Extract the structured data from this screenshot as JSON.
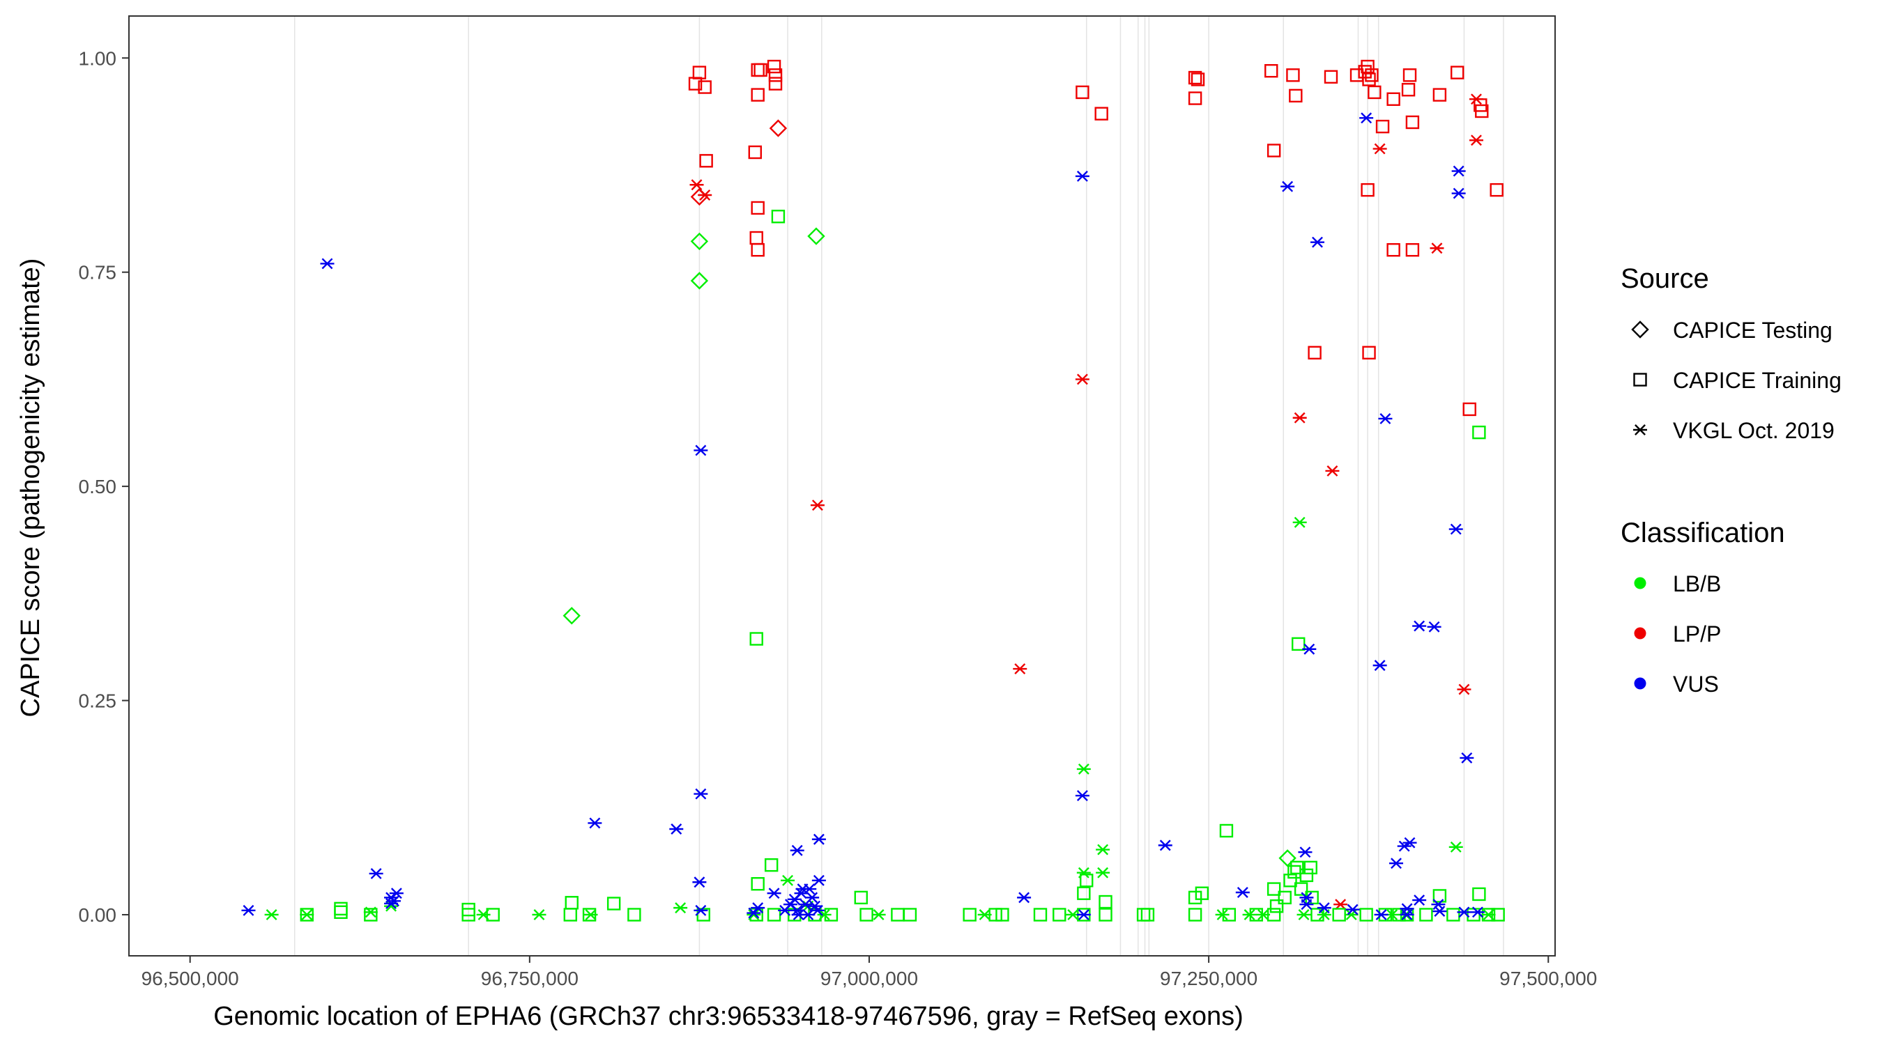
{
  "chart_data": {
    "type": "scatter",
    "xlabel": "Genomic location of EPHA6 (GRCh37 chr3:96533418-97467596, gray = RefSeq exons)",
    "ylabel": "CAPICE score (pathogenicity estimate)",
    "xlim": [
      96455000,
      97505000
    ],
    "ylim": [
      -0.048,
      1.049
    ],
    "x_ticks": [
      96500000,
      96750000,
      97000000,
      97250000,
      97500000
    ],
    "x_tick_labels": [
      "96,500,000",
      "96,750,000",
      "97,000,000",
      "97,250,000",
      "97,500,000"
    ],
    "y_ticks": [
      0,
      0.25,
      0.5,
      0.75,
      1.0
    ],
    "y_tick_labels": [
      "0.00",
      "0.25",
      "0.50",
      "0.75",
      "1.00"
    ],
    "grid": false,
    "exons": [
      96577000,
      96705000,
      96875000,
      96940000,
      96965000,
      97160000,
      97185000,
      97198000,
      97203000,
      97206000,
      97250000,
      97305000,
      97360000,
      97367000,
      97375000,
      97438000,
      97467000
    ],
    "legend_source": {
      "title": "Source",
      "items": [
        {
          "label": "CAPICE Testing",
          "shape": "diamond"
        },
        {
          "label": "CAPICE Training",
          "shape": "square"
        },
        {
          "label": "VKGL Oct. 2019",
          "shape": "asterisk"
        }
      ]
    },
    "legend_class": {
      "title": "Classification",
      "items": [
        {
          "label": "LB/B",
          "color": "#00ee00"
        },
        {
          "label": "LP/P",
          "color": "#ee0000"
        },
        {
          "label": "VUS",
          "color": "#0000ee"
        }
      ]
    },
    "series": [
      {
        "name": "LP/P",
        "color": "#ee0000",
        "shape": "square",
        "points": [
          [
            96875000,
            0.983
          ],
          [
            96872000,
            0.97
          ],
          [
            96879000,
            0.966
          ],
          [
            96880000,
            0.88
          ],
          [
            96918000,
            0.986
          ],
          [
            96920000,
            0.986
          ],
          [
            96930000,
            0.99
          ],
          [
            96931000,
            0.98
          ],
          [
            96931000,
            0.97
          ],
          [
            96918000,
            0.957
          ],
          [
            96916000,
            0.89
          ],
          [
            96918000,
            0.825
          ],
          [
            96917000,
            0.79
          ],
          [
            96918000,
            0.776
          ],
          [
            97157000,
            0.96
          ],
          [
            97171000,
            0.935
          ],
          [
            97240000,
            0.977
          ],
          [
            97242000,
            0.975
          ],
          [
            97240000,
            0.953
          ],
          [
            97296000,
            0.985
          ],
          [
            97312000,
            0.98
          ],
          [
            97314000,
            0.956
          ],
          [
            97298000,
            0.892
          ],
          [
            97340000,
            0.978
          ],
          [
            97359000,
            0.98
          ],
          [
            97365000,
            0.984
          ],
          [
            97367000,
            0.99
          ],
          [
            97368000,
            0.975
          ],
          [
            97370000,
            0.98
          ],
          [
            97372000,
            0.96
          ],
          [
            97378000,
            0.92
          ],
          [
            97386000,
            0.952
          ],
          [
            97398000,
            0.98
          ],
          [
            97397000,
            0.963
          ],
          [
            97400000,
            0.925
          ],
          [
            97420000,
            0.957
          ],
          [
            97433000,
            0.983
          ],
          [
            97450000,
            0.945
          ],
          [
            97451000,
            0.938
          ],
          [
            97462000,
            0.846
          ],
          [
            97367000,
            0.846
          ],
          [
            97386000,
            0.776
          ],
          [
            97400000,
            0.776
          ],
          [
            97328000,
            0.656
          ],
          [
            97368000,
            0.656
          ],
          [
            97442000,
            0.59
          ]
        ]
      },
      {
        "name": "LP/P",
        "color": "#ee0000",
        "shape": "diamond",
        "points": [
          [
            96933000,
            0.918
          ],
          [
            96875000,
            0.838
          ]
        ]
      },
      {
        "name": "LP/P",
        "color": "#ee0000",
        "shape": "asterisk",
        "points": [
          [
            96873000,
            0.852
          ],
          [
            96879000,
            0.84
          ],
          [
            96962000,
            0.478
          ],
          [
            97157000,
            0.625
          ],
          [
            97111000,
            0.287
          ],
          [
            97317000,
            0.58
          ],
          [
            97341000,
            0.518
          ],
          [
            97418000,
            0.778
          ],
          [
            97438000,
            0.263
          ],
          [
            97376000,
            0.894
          ],
          [
            97447000,
            0.952
          ],
          [
            97447000,
            0.904
          ],
          [
            97347000,
            0.012
          ]
        ]
      },
      {
        "name": "LB/B",
        "color": "#00ee00",
        "shape": "square",
        "points": [
          [
            96586000,
            0.0
          ],
          [
            96611000,
            0.003
          ],
          [
            96611000,
            0.007
          ],
          [
            96633000,
            0.0
          ],
          [
            96705000,
            0.0
          ],
          [
            96705000,
            0.006
          ],
          [
            96723000,
            0.0
          ],
          [
            96780000,
            0.0
          ],
          [
            96781000,
            0.014
          ],
          [
            96794000,
            0.0
          ],
          [
            96812000,
            0.013
          ],
          [
            96827000,
            0.0
          ],
          [
            96878000,
            0.0
          ],
          [
            96917000,
            0.0
          ],
          [
            96918000,
            0.036
          ],
          [
            96928000,
            0.058
          ],
          [
            96930000,
            0.0
          ],
          [
            96933000,
            0.815
          ],
          [
            96917000,
            0.322
          ],
          [
            96945000,
            0.0
          ],
          [
            96960000,
            0.0
          ],
          [
            96972000,
            0.0
          ],
          [
            96994000,
            0.02
          ],
          [
            96998000,
            0.0
          ],
          [
            97021000,
            0.0
          ],
          [
            97030000,
            0.0
          ],
          [
            97074000,
            0.0
          ],
          [
            97093000,
            0.0
          ],
          [
            97098000,
            0.0
          ],
          [
            97126000,
            0.0
          ],
          [
            97140000,
            0.0
          ],
          [
            97158000,
            0.0
          ],
          [
            97158000,
            0.025
          ],
          [
            97160000,
            0.04
          ],
          [
            97174000,
            0.0
          ],
          [
            97174000,
            0.015
          ],
          [
            97202000,
            0.0
          ],
          [
            97205000,
            0.0
          ],
          [
            97240000,
            0.0
          ],
          [
            97240000,
            0.02
          ],
          [
            97245000,
            0.025
          ],
          [
            97263000,
            0.098
          ],
          [
            97265000,
            0.0
          ],
          [
            97285000,
            0.0
          ],
          [
            97298000,
            0.0
          ],
          [
            97298000,
            0.03
          ],
          [
            97300000,
            0.01
          ],
          [
            97306000,
            0.02
          ],
          [
            97310000,
            0.04
          ],
          [
            97313000,
            0.05
          ],
          [
            97315000,
            0.055
          ],
          [
            97316000,
            0.316
          ],
          [
            97318000,
            0.03
          ],
          [
            97322000,
            0.046
          ],
          [
            97325000,
            0.055
          ],
          [
            97326000,
            0.02
          ],
          [
            97330000,
            0.0
          ],
          [
            97346000,
            0.0
          ],
          [
            97366000,
            0.0
          ],
          [
            97380000,
            0.0
          ],
          [
            97390000,
            0.0
          ],
          [
            97396000,
            0.0
          ],
          [
            97410000,
            0.0
          ],
          [
            97420000,
            0.022
          ],
          [
            97430000,
            0.0
          ],
          [
            97445000,
            0.0
          ],
          [
            97449000,
            0.024
          ],
          [
            97449000,
            0.563
          ],
          [
            97456000,
            0.0
          ],
          [
            97463000,
            0.0
          ]
        ]
      },
      {
        "name": "LB/B",
        "color": "#00ee00",
        "shape": "diamond",
        "points": [
          [
            96781000,
            0.349
          ],
          [
            96875000,
            0.786
          ],
          [
            96875000,
            0.74
          ],
          [
            96961000,
            0.792
          ],
          [
            97308000,
            0.066
          ]
        ]
      },
      {
        "name": "LB/B",
        "color": "#00ee00",
        "shape": "asterisk",
        "points": [
          [
            96560000,
            0.0
          ],
          [
            96586000,
            0.0
          ],
          [
            96633000,
            0.003
          ],
          [
            96648000,
            0.01
          ],
          [
            96716000,
            0.0
          ],
          [
            96757000,
            0.0
          ],
          [
            96795000,
            0.0
          ],
          [
            96861000,
            0.008
          ],
          [
            96915000,
            0.0
          ],
          [
            96940000,
            0.04
          ],
          [
            96955000,
            0.01
          ],
          [
            96967000,
            0.0
          ],
          [
            97007000,
            0.0
          ],
          [
            97085000,
            0.0
          ],
          [
            97150000,
            0.0
          ],
          [
            97158000,
            0.049
          ],
          [
            97158000,
            0.17
          ],
          [
            97172000,
            0.076
          ],
          [
            97172000,
            0.049
          ],
          [
            97260000,
            0.0
          ],
          [
            97280000,
            0.0
          ],
          [
            97290000,
            0.0
          ],
          [
            97317000,
            0.458
          ],
          [
            97320000,
            0.0
          ],
          [
            97335000,
            0.0
          ],
          [
            97355000,
            0.0
          ],
          [
            97385000,
            0.0
          ],
          [
            97395000,
            0.0
          ],
          [
            97432000,
            0.079
          ],
          [
            97456000,
            0.0
          ]
        ]
      },
      {
        "name": "VUS",
        "color": "#0000ee",
        "shape": "asterisk",
        "points": [
          [
            96543000,
            0.005
          ],
          [
            96601000,
            0.76
          ],
          [
            96637000,
            0.048
          ],
          [
            96648000,
            0.02
          ],
          [
            96652000,
            0.025
          ],
          [
            96650000,
            0.016
          ],
          [
            96648000,
            0.013
          ],
          [
            96798000,
            0.107
          ],
          [
            96858000,
            0.1
          ],
          [
            96876000,
            0.542
          ],
          [
            96876000,
            0.141
          ],
          [
            96875000,
            0.038
          ],
          [
            96876000,
            0.005
          ],
          [
            96915000,
            0.002
          ],
          [
            96918000,
            0.008
          ],
          [
            96930000,
            0.025
          ],
          [
            96938000,
            0.005
          ],
          [
            96942000,
            0.012
          ],
          [
            96945000,
            0.018
          ],
          [
            96947000,
            0.005
          ],
          [
            96948000,
            0.0
          ],
          [
            96950000,
            0.025
          ],
          [
            96951000,
            0.03
          ],
          [
            96953000,
            0.012
          ],
          [
            96955000,
            0.0
          ],
          [
            96956000,
            0.03
          ],
          [
            96958000,
            0.02
          ],
          [
            96960000,
            0.01
          ],
          [
            96962000,
            0.005
          ],
          [
            96947000,
            0.075
          ],
          [
            96963000,
            0.088
          ],
          [
            96963000,
            0.04
          ],
          [
            97114000,
            0.02
          ],
          [
            97157000,
            0.862
          ],
          [
            97157000,
            0.139
          ],
          [
            97158000,
            0.0
          ],
          [
            97218000,
            0.081
          ],
          [
            97275000,
            0.026
          ],
          [
            97308000,
            0.85
          ],
          [
            97321000,
            0.073
          ],
          [
            97322000,
            0.02
          ],
          [
            97324000,
            0.31
          ],
          [
            97330000,
            0.785
          ],
          [
            97322000,
            0.012
          ],
          [
            97335000,
            0.008
          ],
          [
            97356000,
            0.006
          ],
          [
            97366000,
            0.93
          ],
          [
            97376000,
            0.291
          ],
          [
            97380000,
            0.579
          ],
          [
            97388000,
            0.06
          ],
          [
            97394000,
            0.08
          ],
          [
            97398000,
            0.084
          ],
          [
            97396000,
            0.0
          ],
          [
            97405000,
            0.017
          ],
          [
            97405000,
            0.337
          ],
          [
            97416000,
            0.336
          ],
          [
            97419000,
            0.012
          ],
          [
            97420000,
            0.004
          ],
          [
            97434000,
            0.868
          ],
          [
            97434000,
            0.842
          ],
          [
            97432000,
            0.45
          ],
          [
            97440000,
            0.183
          ],
          [
            97438000,
            0.003
          ],
          [
            97448000,
            0.003
          ],
          [
            97377000,
            0.0
          ],
          [
            97396000,
            0.007
          ]
        ]
      }
    ]
  }
}
